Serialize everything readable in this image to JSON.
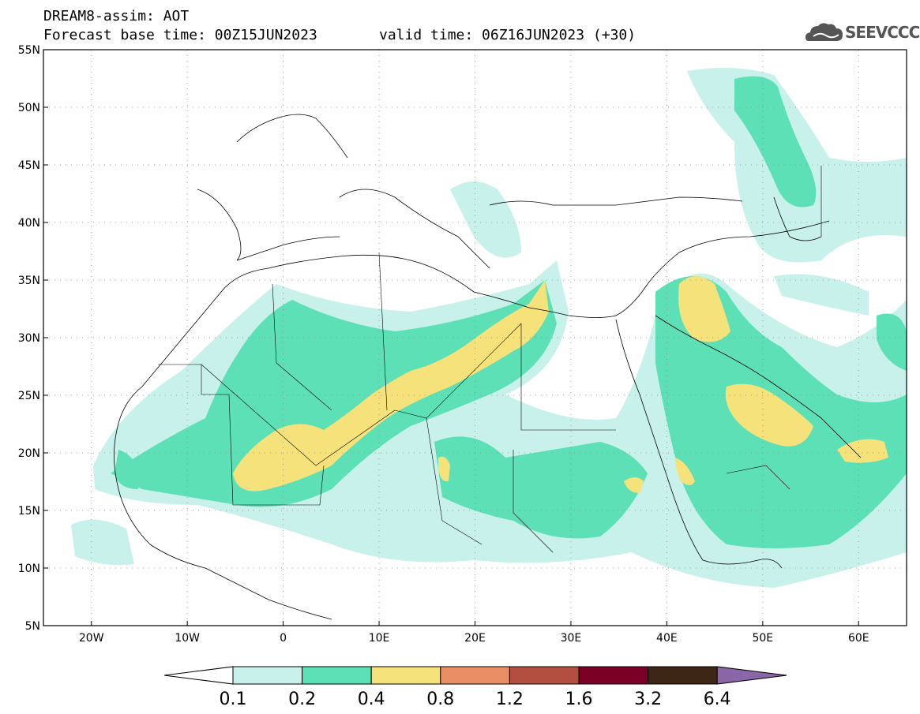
{
  "title": {
    "line1": "DREAM8-assim: AOT",
    "base": "Forecast base time: 00Z15JUN2023",
    "valid": "valid time: 06Z16JUN2023 (+30)"
  },
  "logo": {
    "text": "SEEVCCC",
    "icon": "cloud-logo-icon"
  },
  "map": {
    "lon_range": [
      -25,
      65
    ],
    "lat_range": [
      5,
      55
    ],
    "lat_ticks": [
      {
        "v": 55,
        "label": "55N"
      },
      {
        "v": 50,
        "label": "50N"
      },
      {
        "v": 45,
        "label": "45N"
      },
      {
        "v": 40,
        "label": "40N"
      },
      {
        "v": 35,
        "label": "35N"
      },
      {
        "v": 30,
        "label": "30N"
      },
      {
        "v": 25,
        "label": "25N"
      },
      {
        "v": 20,
        "label": "20N"
      },
      {
        "v": 15,
        "label": "15N"
      },
      {
        "v": 10,
        "label": "10N"
      },
      {
        "v": 5,
        "label": "5N"
      }
    ],
    "lon_ticks": [
      {
        "v": -20,
        "label": "20W"
      },
      {
        "v": -10,
        "label": "10W"
      },
      {
        "v": 0,
        "label": "0"
      },
      {
        "v": 10,
        "label": "10E"
      },
      {
        "v": 20,
        "label": "20E"
      },
      {
        "v": 30,
        "label": "30E"
      },
      {
        "v": 40,
        "label": "40E"
      },
      {
        "v": 50,
        "label": "50E"
      },
      {
        "v": 60,
        "label": "60E"
      }
    ],
    "grid": "dotted"
  },
  "colorbar": {
    "colors": [
      "#ffffff",
      "#c7f1ea",
      "#5ee0b6",
      "#f5e27a",
      "#ea8f65",
      "#b24f40",
      "#7a0025",
      "#3d2616",
      "#8a66a8"
    ],
    "labels": [
      "0.1",
      "0.2",
      "0.4",
      "0.8",
      "1.2",
      "1.6",
      "3.2",
      "6.4"
    ]
  }
}
